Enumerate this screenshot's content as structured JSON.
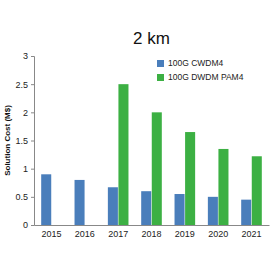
{
  "chart_data": {
    "type": "bar",
    "title": "2 km",
    "y_label": "Solution Cost (M$)",
    "categories": [
      "2015",
      "2016",
      "2017",
      "2018",
      "2019",
      "2020",
      "2021"
    ],
    "series": [
      {
        "name": "100G CWDM4",
        "color": "#4a7ebb",
        "values": [
          0.9,
          0.8,
          0.67,
          0.6,
          0.55,
          0.5,
          0.45
        ]
      },
      {
        "name": "100G DWDM PAM4",
        "color": "#3cb043",
        "values": [
          null,
          null,
          2.5,
          2.0,
          1.65,
          1.35,
          1.22
        ]
      }
    ],
    "ylim": [
      0,
      3
    ],
    "yticks": [
      0,
      0.5,
      1,
      1.5,
      2,
      2.5,
      3
    ],
    "grid": false,
    "legend": "top-right"
  }
}
